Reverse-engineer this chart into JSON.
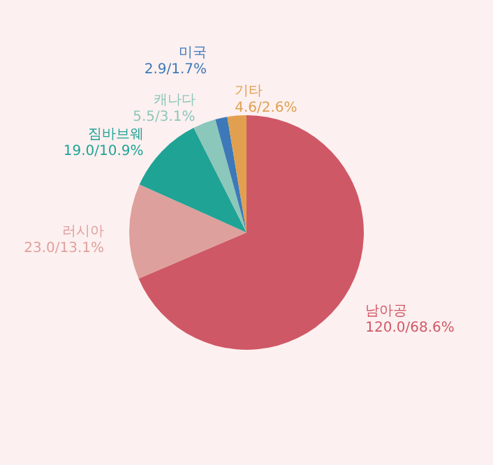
{
  "chart_data": {
    "type": "pie",
    "categories": [
      "남아공",
      "러시아",
      "짐바브웨",
      "캐나다",
      "미국",
      "기타"
    ],
    "values": [
      120.0,
      23.0,
      19.0,
      5.5,
      2.9,
      4.6
    ],
    "colors": [
      "#cf5866",
      "#dea09d",
      "#1fa395",
      "#8cc7bb",
      "#3d79b8",
      "#e0a050"
    ],
    "value_labels": [
      "120.0/68.6%",
      "23.0/13.1%",
      "19.0/10.9%",
      "5.5/3.1%",
      "2.9/1.7%",
      "4.6/2.6%"
    ]
  }
}
